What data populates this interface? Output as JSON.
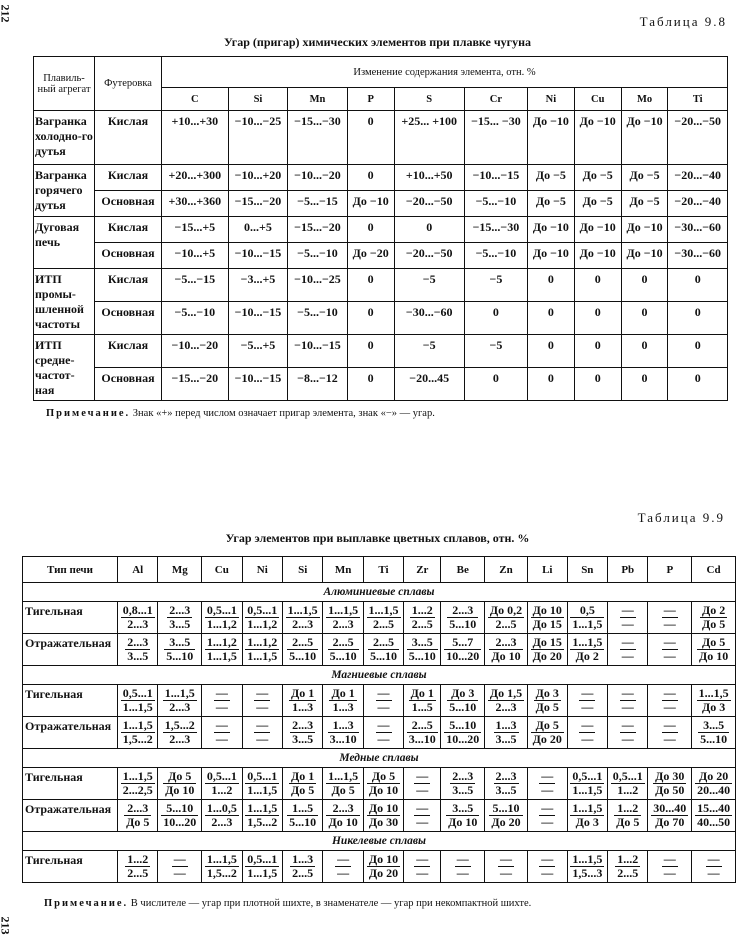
{
  "page_numbers": {
    "top": "212",
    "bottom": "213"
  },
  "table_9_8": {
    "label": "Таблица 9.8",
    "caption": "Угар (пригар) химических элементов при плавке чугуна",
    "header_aggregate": "Плавиль-ный агрегат",
    "header_lining": "Футеровка",
    "header_change": "Изменение содержания элемента, отн. %",
    "elements": [
      "C",
      "Si",
      "Mn",
      "P",
      "S",
      "Cr",
      "Ni",
      "Cu",
      "Mo",
      "Ti"
    ],
    "groups": [
      {
        "aggregate": "Вагранка холодно-го дутья",
        "rows": [
          {
            "lining": "Кислая",
            "values": [
              "+10...+30",
              "−10...−25",
              "−15...−30",
              "0",
              "+25... +100",
              "−15... −30",
              "До −10",
              "До −10",
              "До −10",
              "−20...−50"
            ]
          }
        ]
      },
      {
        "aggregate": "Вагранка горячего дутья",
        "rows": [
          {
            "lining": "Кислая",
            "values": [
              "+20...+300",
              "−10...+20",
              "−10...−20",
              "0",
              "+10...+50",
              "−10...−15",
              "До −5",
              "До −5",
              "До −5",
              "−20...−40"
            ]
          },
          {
            "lining": "Основная",
            "values": [
              "+30...+360",
              "−15...−20",
              "−5...−15",
              "До −10",
              "−20...−50",
              "−5...−10",
              "До −5",
              "До −5",
              "До −5",
              "−20...−40"
            ]
          }
        ]
      },
      {
        "aggregate": "Дуговая печь",
        "rows": [
          {
            "lining": "Кислая",
            "values": [
              "−15...+5",
              "0...+5",
              "−15...−20",
              "0",
              "0",
              "−15...−30",
              "До −10",
              "До −10",
              "До −10",
              "−30...−60"
            ]
          },
          {
            "lining": "Основная",
            "values": [
              "−10...+5",
              "−10...−15",
              "−5...−10",
              "До −20",
              "−20...−50",
              "−5...−10",
              "До −10",
              "До −10",
              "До −10",
              "−30...−60"
            ]
          }
        ]
      },
      {
        "aggregate": "ИТП промы-шленной частоты",
        "rows": [
          {
            "lining": "Кислая",
            "values": [
              "−5...−15",
              "−3...+5",
              "−10...−25",
              "0",
              "−5",
              "−5",
              "0",
              "0",
              "0",
              "0"
            ]
          },
          {
            "lining": "Основная",
            "values": [
              "−5...−10",
              "−10...−15",
              "−5...−10",
              "0",
              "−30...−60",
              "0",
              "0",
              "0",
              "0",
              "0"
            ]
          }
        ]
      },
      {
        "aggregate": "ИТП средне-частот-ная",
        "rows": [
          {
            "lining": "Кислая",
            "values": [
              "−10...−20",
              "−5...+5",
              "−10...−15",
              "0",
              "−5",
              "−5",
              "0",
              "0",
              "0",
              "0"
            ]
          },
          {
            "lining": "Основная",
            "values": [
              "−15...−20",
              "−10...−15",
              "−8...−12",
              "0",
              "−20...45",
              "0",
              "0",
              "0",
              "0",
              "0"
            ]
          }
        ]
      }
    ],
    "note_label": "Примечание.",
    "note_text": "Знак «+» перед числом означает пригар элемента, знак «−» — угар."
  },
  "table_9_9": {
    "label": "Таблица 9.9",
    "caption": "Угар элементов при выплавке цветных сплавов, отн. %",
    "header_furnace": "Тип печи",
    "elements": [
      "Al",
      "Mg",
      "Cu",
      "Ni",
      "Si",
      "Mn",
      "Ti",
      "Zr",
      "Be",
      "Zn",
      "Li",
      "Sn",
      "Pb",
      "P",
      "Cd"
    ],
    "sections": [
      {
        "title": "Алюминиевые сплавы",
        "rows": [
          {
            "furnace": "Тигельная",
            "values": [
              [
                "0,8...1",
                "2...3"
              ],
              [
                "2...3",
                "3...5"
              ],
              [
                "0,5...1",
                "1...1,2"
              ],
              [
                "0,5...1",
                "1...1,2"
              ],
              [
                "1...1,5",
                "2...3"
              ],
              [
                "1...1,5",
                "2...3"
              ],
              [
                "1...1,5",
                "2...5"
              ],
              [
                "1...2",
                "2...5"
              ],
              [
                "2...3",
                "5...10"
              ],
              [
                "До 0,2",
                "2...5"
              ],
              [
                "До 10",
                "До 15"
              ],
              [
                "0,5",
                "1...1,5"
              ],
              [
                "—",
                "—"
              ],
              [
                "—",
                "—"
              ],
              [
                "До 2",
                "До 5"
              ]
            ]
          },
          {
            "furnace": "Отражательная",
            "values": [
              [
                "2...3",
                "3...5"
              ],
              [
                "3...5",
                "5...10"
              ],
              [
                "1...1,2",
                "1...1,5"
              ],
              [
                "1...1,2",
                "1...1,5"
              ],
              [
                "2...5",
                "5...10"
              ],
              [
                "2...5",
                "5...10"
              ],
              [
                "2...5",
                "5...10"
              ],
              [
                "3...5",
                "5...10"
              ],
              [
                "5...7",
                "10...20"
              ],
              [
                "2...3",
                "До 10"
              ],
              [
                "До 15",
                "До 20"
              ],
              [
                "1...1,5",
                "До 2"
              ],
              [
                "—",
                "—"
              ],
              [
                "—",
                "—"
              ],
              [
                "До 5",
                "До 10"
              ]
            ]
          }
        ]
      },
      {
        "title": "Магниевые сплавы",
        "rows": [
          {
            "furnace": "Тигельная",
            "values": [
              [
                "0,5...1",
                "1...1,5"
              ],
              [
                "1...1,5",
                "2...3"
              ],
              [
                "—",
                "—"
              ],
              [
                "—",
                "—"
              ],
              [
                "До 1",
                "1...3"
              ],
              [
                "До 1",
                "1...3"
              ],
              [
                "—",
                "—"
              ],
              [
                "До 1",
                "1...5"
              ],
              [
                "До 3",
                "5...10"
              ],
              [
                "До 1,5",
                "2...3"
              ],
              [
                "До 3",
                "До 5"
              ],
              [
                "—",
                "—"
              ],
              [
                "—",
                "—"
              ],
              [
                "—",
                "—"
              ],
              [
                "1...1,5",
                "До 3"
              ]
            ]
          },
          {
            "furnace": "Отражательная",
            "values": [
              [
                "1...1,5",
                "1,5...2"
              ],
              [
                "1,5...2",
                "2...3"
              ],
              [
                "—",
                "—"
              ],
              [
                "—",
                "—"
              ],
              [
                "2...3",
                "3...5"
              ],
              [
                "1...3",
                "3...10"
              ],
              [
                "—",
                "—"
              ],
              [
                "2...5",
                "3...10"
              ],
              [
                "5...10",
                "10...20"
              ],
              [
                "1...3",
                "3...5"
              ],
              [
                "До 5",
                "До 20"
              ],
              [
                "—",
                "—"
              ],
              [
                "—",
                "—"
              ],
              [
                "—",
                "—"
              ],
              [
                "3...5",
                "5...10"
              ]
            ]
          }
        ]
      },
      {
        "title": "Медные сплавы",
        "rows": [
          {
            "furnace": "Тигельная",
            "values": [
              [
                "1...1,5",
                "2...2,5"
              ],
              [
                "До 5",
                "До 10"
              ],
              [
                "0,5...1",
                "1...2"
              ],
              [
                "0,5...1",
                "1...1,5"
              ],
              [
                "До 1",
                "До 5"
              ],
              [
                "1...1,5",
                "До 5"
              ],
              [
                "До 5",
                "До 10"
              ],
              [
                "—",
                "—"
              ],
              [
                "2...3",
                "3...5"
              ],
              [
                "2...3",
                "3...5"
              ],
              [
                "—",
                "—"
              ],
              [
                "0,5...1",
                "1...1,5"
              ],
              [
                "0,5...1",
                "1...2"
              ],
              [
                "До 30",
                "До 50"
              ],
              [
                "До 20",
                "20...40"
              ]
            ]
          },
          {
            "furnace": "Отражательная",
            "values": [
              [
                "2...3",
                "До 5"
              ],
              [
                "5...10",
                "10...20"
              ],
              [
                "1...0,5",
                "2...3"
              ],
              [
                "1...1,5",
                "1,5...2"
              ],
              [
                "1...5",
                "5...10"
              ],
              [
                "2...3",
                "До 10"
              ],
              [
                "До 10",
                "До 30"
              ],
              [
                "—",
                "—"
              ],
              [
                "3...5",
                "До 10"
              ],
              [
                "5...10",
                "До 20"
              ],
              [
                "—",
                "—"
              ],
              [
                "1...1,5",
                "До 3"
              ],
              [
                "1...2",
                "До 5"
              ],
              [
                "30...40",
                "До 70"
              ],
              [
                "15...40",
                "40...50"
              ]
            ]
          }
        ]
      },
      {
        "title": "Никелевые сплавы",
        "rows": [
          {
            "furnace": "Тигельная",
            "values": [
              [
                "1...2",
                "2...5"
              ],
              [
                "—",
                "—"
              ],
              [
                "1...1,5",
                "1,5...2"
              ],
              [
                "0,5...1",
                "1...1,5"
              ],
              [
                "1...3",
                "2...5"
              ],
              [
                "—",
                "—"
              ],
              [
                "До 10",
                "До 20"
              ],
              [
                "—",
                "—"
              ],
              [
                "—",
                "—"
              ],
              [
                "—",
                "—"
              ],
              [
                "—",
                "—"
              ],
              [
                "1...1,5",
                "1,5...3"
              ],
              [
                "1...2",
                "2...5"
              ],
              [
                "—",
                "—"
              ],
              [
                "—",
                "—"
              ]
            ]
          }
        ]
      }
    ],
    "note_label": "Примечание.",
    "note_text": "В числителе — угар при плотной шихте, в знаменателе — угар при некомпактной шихте."
  }
}
